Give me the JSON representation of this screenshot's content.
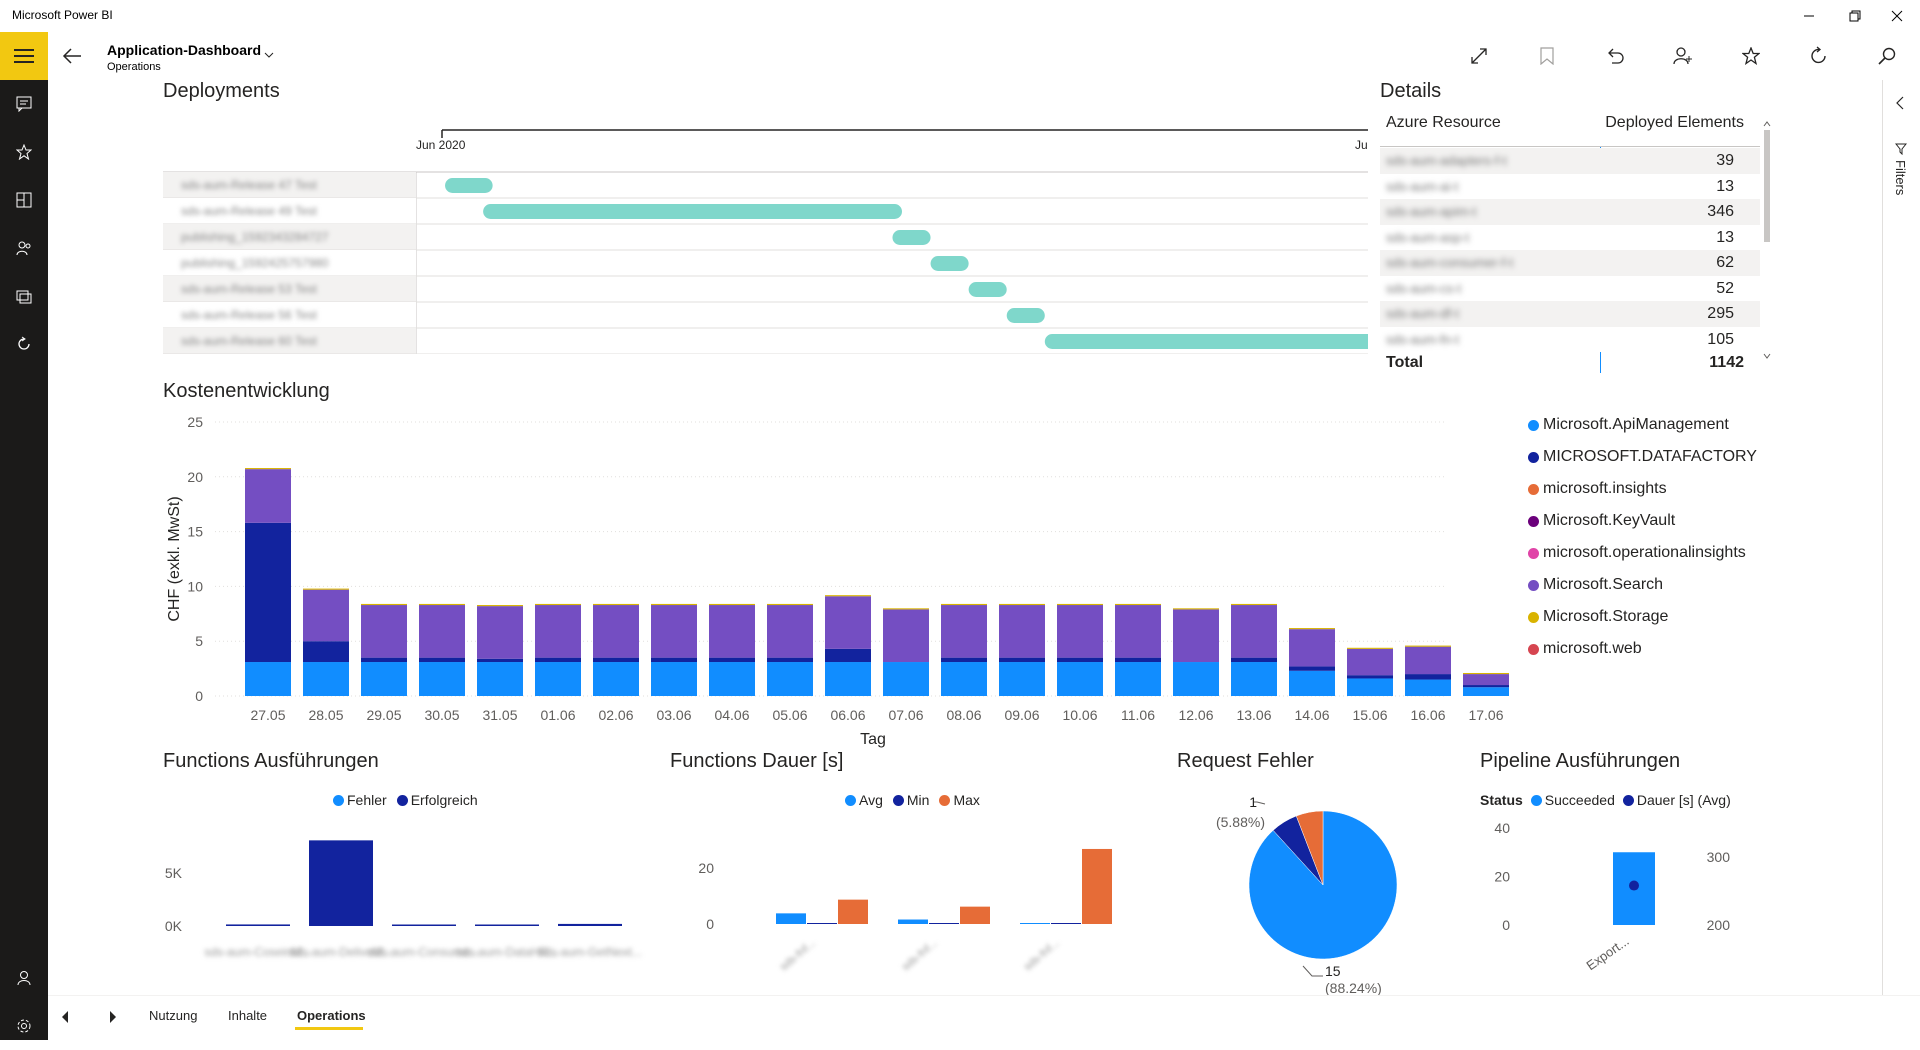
{
  "app": {
    "title": "Microsoft Power BI"
  },
  "header": {
    "title": "Application-Dashboard",
    "subtitle": "Operations"
  },
  "deployments": {
    "title": "Deployments",
    "date_start": "Jun 2020",
    "date_end": "Ju",
    "rows": [
      {
        "label": "sds-aum-Release 47 Test",
        "start": 0.02,
        "end": 0.07
      },
      {
        "label": "sds-aum-Release 49 Test",
        "start": 0.06,
        "end": 0.5
      },
      {
        "label": "publishing_1592343284727",
        "start": 0.49,
        "end": 0.53
      },
      {
        "label": "publishing_1592425757980",
        "start": 0.53,
        "end": 0.57
      },
      {
        "label": "sds-aum-Release 53 Test",
        "start": 0.57,
        "end": 0.61
      },
      {
        "label": "sds-aum-Release 56 Test",
        "start": 0.61,
        "end": 0.65
      },
      {
        "label": "sds-aum-Release 60 Test",
        "start": 0.65,
        "end": 1.0
      }
    ]
  },
  "details": {
    "title": "Details",
    "col1": "Azure Resource",
    "col2": "Deployed Elements",
    "rows": [
      {
        "name": "sds-aum-adapters-f-t",
        "value": "39"
      },
      {
        "name": "sds-aum-ai-t",
        "value": "13"
      },
      {
        "name": "sds-aum-apim-t",
        "value": "346"
      },
      {
        "name": "sds-aum-asp-t",
        "value": "13"
      },
      {
        "name": "sds-aum-consumer-f-t",
        "value": "62"
      },
      {
        "name": "sds-aum-cs-t",
        "value": "52"
      },
      {
        "name": "sds-aum-df-t",
        "value": "295"
      },
      {
        "name": "sds-aum-fn-t",
        "value": "105"
      }
    ],
    "total_label": "Total",
    "total_value": "1142"
  },
  "kosten": {
    "title": "Kostenentwicklung",
    "xlabel": "Tag",
    "ylabel": "CHF (exkl. MwSt)",
    "legend": [
      {
        "name": "Microsoft.ApiManagement",
        "color": "#118dff"
      },
      {
        "name": "MICROSOFT.DATAFACTORY",
        "color": "#12239e"
      },
      {
        "name": "microsoft.insights",
        "color": "#e66c37"
      },
      {
        "name": "Microsoft.KeyVault",
        "color": "#6b007b"
      },
      {
        "name": "microsoft.operationalinsights",
        "color": "#e044a7"
      },
      {
        "name": "Microsoft.Search",
        "color": "#744ec2"
      },
      {
        "name": "Microsoft.Storage",
        "color": "#d9b300"
      },
      {
        "name": "microsoft.web",
        "color": "#d64550"
      }
    ]
  },
  "chart_data": [
    {
      "type": "bar",
      "title": "Kostenentwicklung",
      "xlabel": "Tag",
      "ylabel": "CHF (exkl. MwSt)",
      "ylim": [
        0,
        25
      ],
      "yticks": [
        0,
        5,
        10,
        15,
        20,
        25
      ],
      "stacked": true,
      "categories": [
        "27.05",
        "28.05",
        "29.05",
        "30.05",
        "31.05",
        "01.06",
        "02.06",
        "03.06",
        "04.06",
        "05.06",
        "06.06",
        "07.06",
        "08.06",
        "09.06",
        "10.06",
        "11.06",
        "12.06",
        "13.06",
        "14.06",
        "15.06",
        "16.06",
        "17.06"
      ],
      "series": [
        {
          "name": "Microsoft.ApiManagement",
          "color": "#118dff",
          "values": [
            3.1,
            3.1,
            3.1,
            3.1,
            3.1,
            3.1,
            3.1,
            3.1,
            3.1,
            3.1,
            3.1,
            3.1,
            3.1,
            3.1,
            3.1,
            3.1,
            3.1,
            3.1,
            2.3,
            1.6,
            1.5,
            0.8
          ]
        },
        {
          "name": "MICROSOFT.DATAFACTORY",
          "color": "#12239e",
          "values": [
            12.7,
            1.9,
            0.4,
            0.4,
            0.3,
            0.4,
            0.4,
            0.4,
            0.4,
            0.4,
            1.2,
            0,
            0.4,
            0.4,
            0.4,
            0.4,
            0,
            0.4,
            0.4,
            0.3,
            0.5,
            0.2
          ]
        },
        {
          "name": "microsoft.insights",
          "color": "#e66c37",
          "values": [
            0,
            0,
            0,
            0,
            0,
            0,
            0,
            0,
            0,
            0,
            0,
            0,
            0,
            0,
            0,
            0,
            0,
            0,
            0,
            0,
            0,
            0
          ]
        },
        {
          "name": "Microsoft.KeyVault",
          "color": "#6b007b",
          "values": [
            0,
            0,
            0,
            0,
            0,
            0,
            0,
            0,
            0,
            0,
            0,
            0,
            0,
            0,
            0,
            0,
            0,
            0,
            0,
            0,
            0,
            0
          ]
        },
        {
          "name": "microsoft.operationalinsights",
          "color": "#e044a7",
          "values": [
            0,
            0,
            0,
            0,
            0,
            0,
            0,
            0,
            0,
            0,
            0,
            0,
            0,
            0,
            0,
            0,
            0,
            0,
            0,
            0,
            0,
            0
          ]
        },
        {
          "name": "Microsoft.Search",
          "color": "#744ec2",
          "values": [
            4.9,
            4.7,
            4.8,
            4.8,
            4.8,
            4.8,
            4.8,
            4.8,
            4.8,
            4.8,
            4.8,
            4.8,
            4.8,
            4.8,
            4.8,
            4.8,
            4.8,
            4.8,
            3.4,
            2.4,
            2.5,
            1.0
          ]
        },
        {
          "name": "Microsoft.Storage",
          "color": "#d9b300",
          "values": [
            0.1,
            0.1,
            0.1,
            0.1,
            0.1,
            0.1,
            0.1,
            0.1,
            0.1,
            0.1,
            0.1,
            0.1,
            0.1,
            0.1,
            0.1,
            0.1,
            0.1,
            0.1,
            0.1,
            0.1,
            0.1,
            0.1
          ]
        },
        {
          "name": "microsoft.web",
          "color": "#d64550",
          "values": [
            0,
            0,
            0,
            0,
            0,
            0,
            0,
            0,
            0,
            0,
            0,
            0,
            0,
            0,
            0,
            0,
            0,
            0,
            0,
            0,
            0,
            0
          ]
        }
      ]
    },
    {
      "type": "bar",
      "title": "Functions Ausführungen",
      "yticks_labels": [
        "0K",
        "5K"
      ],
      "ylim": [
        0,
        9000
      ],
      "categories": [
        "sds-aum-CoseinM...",
        "sds-aum-DeliveM...",
        "sds-aum-Consume...",
        "sds-aum-DataHR...",
        "sds-aum-GetNext..."
      ],
      "series": [
        {
          "name": "Fehler",
          "color": "#118dff",
          "values": [
            0,
            0,
            0,
            0,
            0
          ]
        },
        {
          "name": "Erfolgreich",
          "color": "#12239e",
          "values": [
            150,
            8200,
            80,
            60,
            200
          ]
        }
      ]
    },
    {
      "type": "bar",
      "title": "Functions Dauer [s]",
      "ylim": [
        0,
        30
      ],
      "yticks": [
        0,
        20
      ],
      "categories": [
        "sds-fnf...",
        "sds-fnf...",
        "sds-fnf..."
      ],
      "series": [
        {
          "name": "Avg",
          "color": "#118dff",
          "values": [
            3.8,
            1.6,
            0.3
          ]
        },
        {
          "name": "Min",
          "color": "#12239e",
          "values": [
            0.3,
            0.2,
            0.2
          ]
        },
        {
          "name": "Max",
          "color": "#e66c37",
          "values": [
            8.7,
            6.2,
            26.8
          ]
        }
      ]
    },
    {
      "type": "pie",
      "title": "Request Fehler",
      "slices": [
        {
          "value": 15,
          "pct": "(88.24%)",
          "color": "#118dff"
        },
        {
          "value": 1,
          "pct": "(5.88%)",
          "color": "#12239e"
        },
        {
          "value": 1,
          "pct": "",
          "color": "#e66c37"
        }
      ]
    },
    {
      "type": "bar",
      "title": "Pipeline Ausführungen",
      "legend_title": "Status",
      "categories": [
        "Export..."
      ],
      "left_axis": {
        "ylim": [
          0,
          40
        ],
        "ticks": [
          0,
          20,
          40
        ]
      },
      "right_axis": {
        "ylim": [
          200,
          300
        ],
        "ticks": [
          200,
          300
        ]
      },
      "series": [
        {
          "name": "Succeeded",
          "color": "#118dff",
          "values": [
            30
          ]
        },
        {
          "name": "Dauer [s] (Avg)",
          "color": "#12239e",
          "values": [
            258
          ]
        }
      ]
    }
  ],
  "tabs": [
    "Nutzung",
    "Inhalte",
    "Operations"
  ],
  "filters_label": "Filters",
  "colors": {
    "accent": "#f2c811",
    "gantt": "#7fd7cb"
  }
}
